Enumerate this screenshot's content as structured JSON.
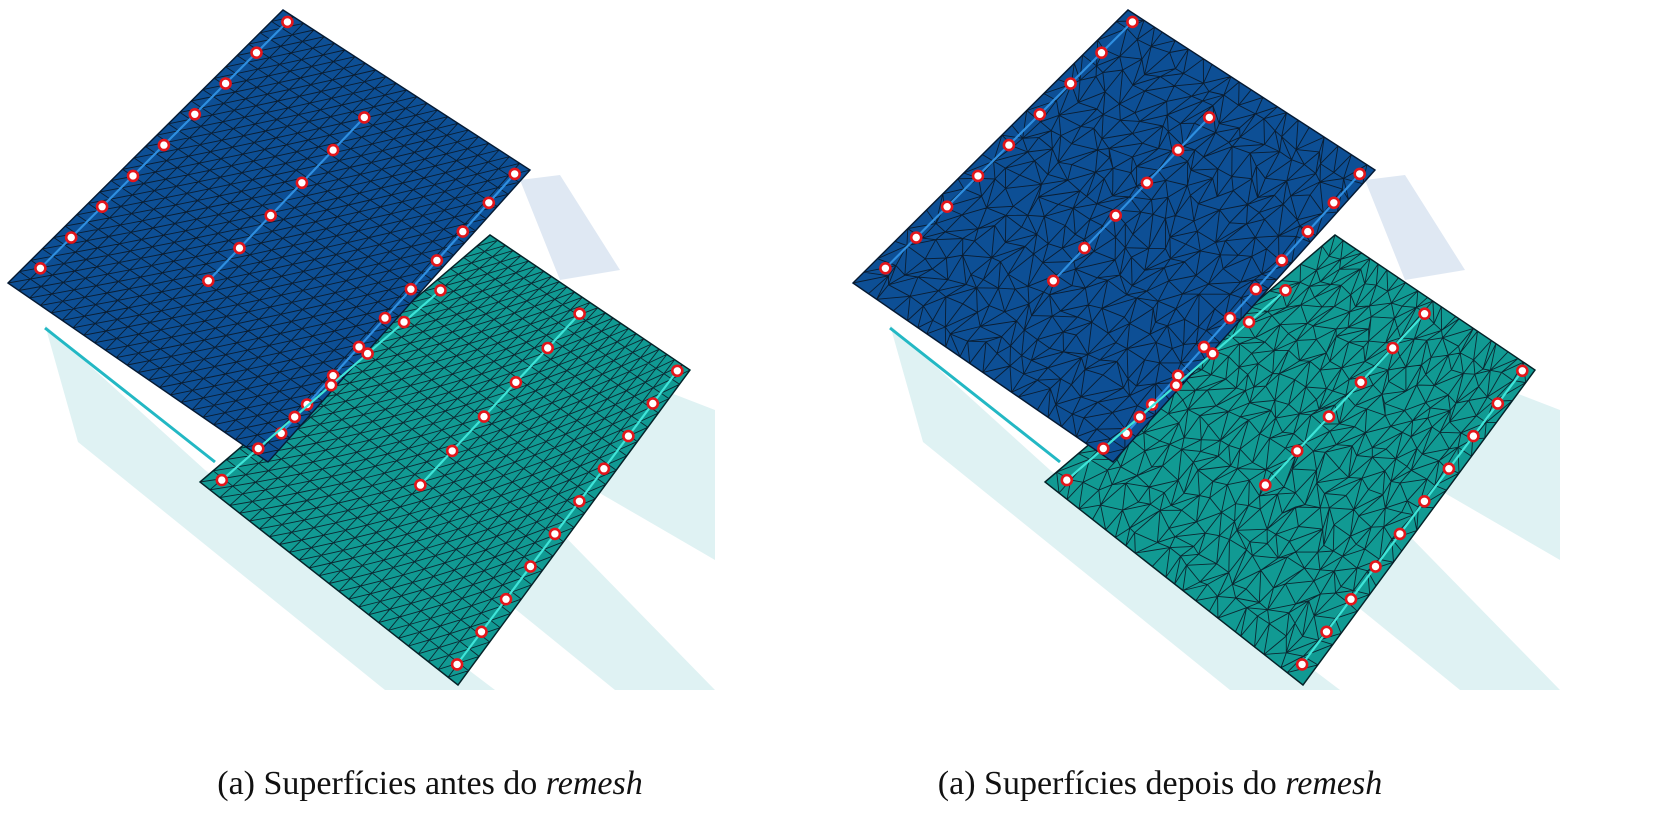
{
  "colors": {
    "upper_surface": "#0d4f95",
    "upper_surface_edge": "#2f8fe0",
    "lower_surface": "#119a93",
    "lower_surface_edge": "#3fe4d8",
    "shadow": "#dff2f3",
    "shadow_upper": "#dfe8f3",
    "mesh_line": "#0a1420",
    "node_fill": "#ffffff",
    "node_stroke": "#e3161b"
  },
  "panels": [
    {
      "id": "before",
      "mesh": "structured",
      "caption_prefix": "(a) Superfícies antes do ",
      "caption_emph": "remesh"
    },
    {
      "id": "after",
      "mesh": "unstructured",
      "caption_prefix": "(a) Superfícies depois do ",
      "caption_emph": "remesh"
    }
  ]
}
